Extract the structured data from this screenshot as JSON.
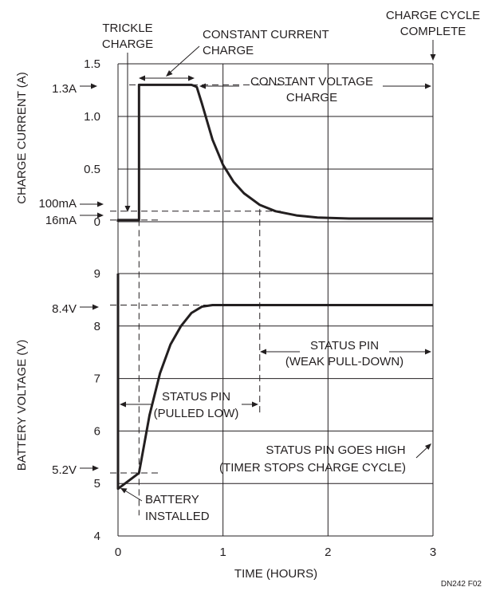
{
  "chart_data": [
    {
      "type": "line",
      "panel": "top",
      "ylabel": "CHARGE CURRENT (A)",
      "ylim": [
        0,
        1.5
      ],
      "yticks": [
        "0",
        "0.5",
        "1.0",
        "1.5"
      ],
      "xlim": [
        0,
        3
      ],
      "series": [
        {
          "x": [
            0,
            0.0,
            0.2,
            0.2,
            0.7,
            0.75,
            0.8,
            0.9,
            1.0,
            1.1,
            1.2,
            1.35,
            1.5,
            1.7,
            1.9,
            2.2,
            2.5,
            3.0
          ],
          "y": [
            0.0,
            0.016,
            0.016,
            1.3,
            1.3,
            1.28,
            1.12,
            0.78,
            0.54,
            0.38,
            0.27,
            0.16,
            0.1,
            0.06,
            0.04,
            0.03,
            0.03,
            0.03
          ]
        }
      ],
      "annotations": [
        "1.3A",
        "100mA",
        "16mA"
      ]
    },
    {
      "type": "line",
      "panel": "bottom",
      "ylabel": "BATTERY VOLTAGE (V)",
      "xlabel": "TIME (HOURS)",
      "ylim": [
        4,
        9
      ],
      "yticks": [
        "4",
        "5",
        "6",
        "7",
        "8",
        "9"
      ],
      "xlim": [
        0,
        3
      ],
      "xticks": [
        "0",
        "1",
        "2",
        "3"
      ],
      "series": [
        {
          "x": [
            0,
            0.0,
            0.0,
            0.2,
            0.3,
            0.4,
            0.5,
            0.6,
            0.7,
            0.8,
            0.9,
            1.0,
            3.0
          ],
          "y": [
            9.0,
            9.0,
            4.9,
            5.2,
            6.3,
            7.1,
            7.65,
            8.0,
            8.25,
            8.37,
            8.4,
            8.4,
            8.4
          ]
        }
      ],
      "annotations": [
        "8.4V",
        "5.2V"
      ]
    }
  ],
  "annotations": {
    "trickle_charge": [
      "TRICKLE",
      "CHARGE"
    ],
    "constant_current": [
      "CONSTANT CURRENT",
      "CHARGE"
    ],
    "constant_voltage": [
      "CONSTANT VOLTAGE",
      "CHARGE"
    ],
    "cycle_complete": [
      "CHARGE CYCLE",
      "COMPLETE"
    ],
    "status_weak": [
      "STATUS PIN",
      "(WEAK PULL-DOWN)"
    ],
    "status_low": [
      "STATUS PIN",
      "(PULLED LOW)"
    ],
    "status_high": [
      "STATUS PIN GOES HIGH",
      "(TIMER STOPS CHARGE CYCLE)"
    ],
    "battery_installed": [
      "BATTERY",
      "INSTALLED"
    ]
  },
  "footer": "DN242 F02"
}
